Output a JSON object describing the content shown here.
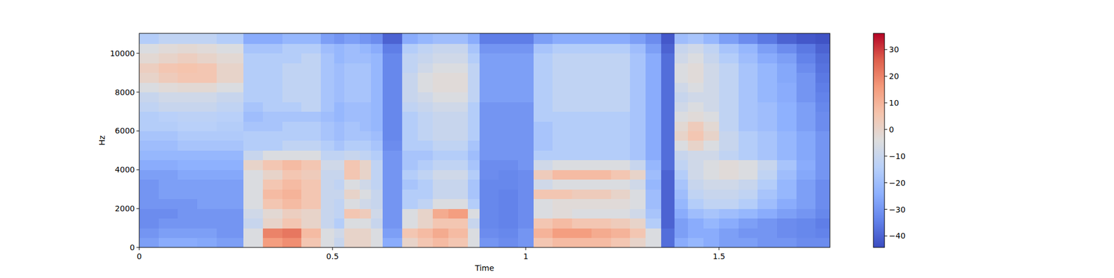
{
  "chart_data": {
    "type": "heatmap",
    "color": "coolwarm",
    "grid": false,
    "x_label": "Time",
    "y_label": "Hz",
    "xlim": [
      0,
      1.787
    ],
    "xticks": [
      0,
      0.5,
      1,
      1.5
    ],
    "ylim": [
      0,
      11025
    ],
    "yticks": [
      0,
      2000,
      4000,
      6000,
      8000,
      10000
    ],
    "x_bins": [
      0,
      0.05,
      0.1,
      0.15,
      0.2,
      0.27,
      0.32,
      0.37,
      0.42,
      0.47,
      0.505,
      0.53,
      0.57,
      0.6,
      0.63,
      0.68,
      0.72,
      0.76,
      0.8,
      0.85,
      0.88,
      0.93,
      0.98,
      1.02,
      1.07,
      1.12,
      1.17,
      1.22,
      1.27,
      1.31,
      1.35,
      1.385,
      1.42,
      1.46,
      1.5,
      1.55,
      1.6,
      1.65,
      1.7,
      1.75,
      1.787
    ],
    "y_bins": [
      0,
      500,
      1000,
      1500,
      2000,
      2500,
      3000,
      3500,
      4000,
      4500,
      5000,
      5500,
      6000,
      6500,
      7000,
      7500,
      8000,
      8500,
      9000,
      9500,
      10000,
      10500,
      11025
    ],
    "cells": [
      [
        -28,
        -25,
        -25,
        -26,
        -28,
        -5,
        15,
        18,
        5,
        -5,
        -10,
        0,
        0,
        -5,
        -25,
        0,
        5,
        8,
        5,
        -5,
        -30,
        -32,
        -30,
        5,
        8,
        8,
        8,
        5,
        0,
        -5,
        -38,
        -25,
        -22,
        -25,
        -28,
        -28,
        -30,
        -30,
        -32,
        -32
      ],
      [
        -30,
        -28,
        -28,
        -28,
        -30,
        -5,
        20,
        22,
        8,
        -5,
        -8,
        0,
        0,
        -5,
        -28,
        5,
        8,
        12,
        8,
        -5,
        -32,
        -33,
        -30,
        10,
        15,
        15,
        12,
        10,
        5,
        -5,
        -38,
        -28,
        -25,
        -25,
        -28,
        -30,
        -30,
        -32,
        -33,
        -34
      ],
      [
        -32,
        -30,
        -30,
        -30,
        -30,
        -10,
        0,
        5,
        0,
        -10,
        -15,
        -5,
        -5,
        -10,
        -30,
        -5,
        0,
        5,
        5,
        -10,
        -33,
        -34,
        -32,
        5,
        8,
        5,
        5,
        3,
        0,
        -15,
        -40,
        -28,
        -25,
        -22,
        -25,
        -28,
        -30,
        -32,
        -33,
        -35
      ],
      [
        -32,
        -32,
        -30,
        -30,
        -30,
        -8,
        -2,
        2,
        0,
        -10,
        -12,
        5,
        3,
        -8,
        -30,
        -5,
        0,
        12,
        15,
        -5,
        -33,
        -34,
        -32,
        -5,
        -3,
        -5,
        -5,
        -5,
        -8,
        -18,
        -40,
        -25,
        -20,
        -18,
        -20,
        -22,
        -25,
        -28,
        -30,
        -33
      ],
      [
        -30,
        -30,
        -30,
        -28,
        -28,
        -5,
        5,
        8,
        5,
        -10,
        -12,
        -5,
        -8,
        -10,
        -30,
        -15,
        -12,
        -5,
        -5,
        -15,
        -33,
        -34,
        -32,
        -5,
        -3,
        -3,
        -3,
        -3,
        -5,
        -20,
        -40,
        -22,
        -15,
        -12,
        -12,
        -15,
        -20,
        -25,
        -28,
        -32
      ],
      [
        -30,
        -28,
        -28,
        -28,
        -28,
        -5,
        8,
        10,
        5,
        -10,
        -10,
        0,
        -5,
        -10,
        -30,
        -15,
        -15,
        -10,
        -10,
        -18,
        -33,
        -34,
        -32,
        5,
        5,
        3,
        3,
        0,
        -5,
        -20,
        -40,
        -20,
        -12,
        -10,
        -10,
        -12,
        -18,
        -22,
        -28,
        -32
      ],
      [
        -30,
        -28,
        -28,
        -28,
        -28,
        -5,
        5,
        8,
        5,
        -10,
        -12,
        -5,
        -8,
        -12,
        -30,
        -18,
        -15,
        -10,
        -10,
        -18,
        -33,
        -33,
        -32,
        -8,
        -5,
        -5,
        -5,
        -5,
        -8,
        -22,
        -40,
        -18,
        -10,
        -8,
        -8,
        -10,
        -15,
        -22,
        -28,
        -32
      ],
      [
        -28,
        -28,
        -26,
        -26,
        -26,
        -5,
        0,
        5,
        3,
        -10,
        -10,
        5,
        0,
        -12,
        -30,
        -15,
        -12,
        -8,
        -8,
        -15,
        -32,
        -33,
        -32,
        3,
        8,
        8,
        8,
        5,
        0,
        -20,
        -40,
        -15,
        -8,
        -5,
        -3,
        -5,
        -12,
        -20,
        -26,
        -30
      ],
      [
        -25,
        -25,
        -24,
        -24,
        -24,
        0,
        5,
        8,
        5,
        -8,
        -8,
        5,
        0,
        -12,
        -30,
        -18,
        -15,
        -12,
        -12,
        -18,
        -32,
        -32,
        -30,
        -8,
        -5,
        -5,
        -5,
        -5,
        -10,
        -22,
        -38,
        -12,
        -8,
        -5,
        -3,
        -5,
        -10,
        -18,
        -25,
        -30
      ],
      [
        -22,
        -22,
        -22,
        -22,
        -22,
        -10,
        -5,
        -5,
        -5,
        -12,
        -12,
        -10,
        -12,
        -15,
        -30,
        -18,
        -18,
        -15,
        -15,
        -20,
        -30,
        -30,
        -30,
        -15,
        -15,
        -15,
        -15,
        -15,
        -18,
        -25,
        -38,
        -10,
        -8,
        -8,
        -12,
        -15,
        -18,
        -22,
        -26,
        -30
      ],
      [
        -20,
        -20,
        -18,
        -18,
        -18,
        -15,
        -15,
        -12,
        -12,
        -15,
        -18,
        -15,
        -15,
        -18,
        -32,
        -15,
        -15,
        -12,
        -12,
        -18,
        -30,
        -30,
        -30,
        -18,
        -15,
        -15,
        -15,
        -15,
        -18,
        -25,
        -38,
        -5,
        0,
        -5,
        -10,
        -15,
        -18,
        -22,
        -26,
        -30
      ],
      [
        -18,
        -18,
        -16,
        -16,
        -16,
        -15,
        -15,
        -15,
        -15,
        -18,
        -20,
        -18,
        -18,
        -20,
        -33,
        -15,
        -12,
        -10,
        -10,
        -15,
        -30,
        -30,
        -30,
        -18,
        -15,
        -15,
        -15,
        -15,
        -18,
        -25,
        -38,
        0,
        5,
        0,
        -10,
        -15,
        -18,
        -22,
        -26,
        -30
      ],
      [
        -15,
        -15,
        -14,
        -14,
        -15,
        -18,
        -18,
        -15,
        -15,
        -18,
        -20,
        -18,
        -20,
        -22,
        -33,
        -15,
        -12,
        -10,
        -10,
        -15,
        -30,
        -30,
        -30,
        -18,
        -15,
        -15,
        -15,
        -15,
        -18,
        -25,
        -38,
        -2,
        3,
        -2,
        -12,
        -18,
        -20,
        -24,
        -28,
        -32
      ],
      [
        -15,
        -14,
        -13,
        -13,
        -14,
        -20,
        -18,
        -18,
        -18,
        -20,
        -22,
        -20,
        -20,
        -22,
        -33,
        -15,
        -12,
        -10,
        -10,
        -15,
        -30,
        -30,
        -30,
        -15,
        -15,
        -15,
        -15,
        -15,
        -18,
        -25,
        -38,
        -5,
        -3,
        -5,
        -12,
        -18,
        -20,
        -24,
        -28,
        -32
      ],
      [
        -12,
        -10,
        -10,
        -10,
        -12,
        -18,
        -15,
        -15,
        -12,
        -18,
        -22,
        -20,
        -20,
        -22,
        -33,
        -12,
        -10,
        -8,
        -8,
        -15,
        -30,
        -30,
        -30,
        -15,
        -12,
        -12,
        -12,
        -12,
        -18,
        -25,
        -38,
        -8,
        -5,
        -8,
        -12,
        -18,
        -20,
        -24,
        -28,
        -33
      ],
      [
        -10,
        -8,
        -8,
        -8,
        -10,
        -15,
        -15,
        -12,
        -12,
        -18,
        -20,
        -18,
        -18,
        -22,
        -33,
        -10,
        -8,
        -5,
        -5,
        -12,
        -28,
        -28,
        -28,
        -15,
        -12,
        -12,
        -12,
        -12,
        -18,
        -25,
        -38,
        -10,
        -8,
        -8,
        -12,
        -18,
        -22,
        -25,
        -30,
        -34
      ],
      [
        -5,
        -3,
        -2,
        -2,
        -5,
        -15,
        -15,
        -12,
        -12,
        -18,
        -20,
        -18,
        -18,
        -22,
        -33,
        -10,
        -5,
        -3,
        -3,
        -12,
        -28,
        -28,
        -28,
        -15,
        -12,
        -12,
        -12,
        -12,
        -18,
        -25,
        -38,
        -8,
        -5,
        -8,
        -12,
        -18,
        -22,
        -25,
        -30,
        -35
      ],
      [
        0,
        3,
        5,
        5,
        0,
        -15,
        -15,
        -12,
        -12,
        -18,
        -20,
        -18,
        -18,
        -22,
        -33,
        -10,
        -5,
        -3,
        -3,
        -12,
        -28,
        -28,
        -28,
        -15,
        -12,
        -12,
        -12,
        -12,
        -18,
        -25,
        -38,
        -5,
        -3,
        -8,
        -12,
        -18,
        -22,
        -26,
        -30,
        -36
      ],
      [
        2,
        5,
        6,
        5,
        0,
        -15,
        -15,
        -12,
        -12,
        -18,
        -20,
        -18,
        -18,
        -22,
        -33,
        -12,
        -8,
        -5,
        -5,
        -12,
        -28,
        -28,
        -28,
        -15,
        -12,
        -12,
        -12,
        -12,
        -18,
        -25,
        -38,
        -5,
        -3,
        -8,
        -12,
        -18,
        -22,
        -26,
        -32,
        -37
      ],
      [
        -2,
        0,
        2,
        0,
        -2,
        -15,
        -15,
        -15,
        -12,
        -18,
        -22,
        -20,
        -20,
        -22,
        -33,
        -12,
        -10,
        -8,
        -8,
        -15,
        -28,
        -28,
        -28,
        -15,
        -12,
        -12,
        -12,
        -12,
        -18,
        -25,
        -38,
        -8,
        -5,
        -10,
        -15,
        -20,
        -25,
        -28,
        -34,
        -38
      ],
      [
        -5,
        -3,
        -2,
        -3,
        -5,
        -18,
        -18,
        -15,
        -15,
        -20,
        -22,
        -20,
        -22,
        -25,
        -35,
        -15,
        -12,
        -10,
        -10,
        -18,
        -30,
        -30,
        -30,
        -18,
        -15,
        -15,
        -15,
        -15,
        -20,
        -28,
        -40,
        -10,
        -8,
        -12,
        -18,
        -22,
        -28,
        -32,
        -36,
        -40
      ],
      [
        -15,
        -12,
        -12,
        -12,
        -15,
        -25,
        -25,
        -22,
        -22,
        -28,
        -30,
        -28,
        -30,
        -32,
        -40,
        -25,
        -22,
        -20,
        -20,
        -25,
        -35,
        -35,
        -35,
        -28,
        -25,
        -25,
        -25,
        -25,
        -28,
        -32,
        -42,
        -20,
        -18,
        -22,
        -28,
        -32,
        -36,
        -40,
        -42,
        -43
      ]
    ],
    "colorbar": {
      "range": [
        -44.3,
        36.1
      ],
      "ticks": [
        {
          "value": -40,
          "label": "−40"
        },
        {
          "value": -30,
          "label": "−30"
        },
        {
          "value": -20,
          "label": "−20"
        },
        {
          "value": -10,
          "label": "−10"
        },
        0,
        10,
        20,
        30
      ]
    }
  }
}
